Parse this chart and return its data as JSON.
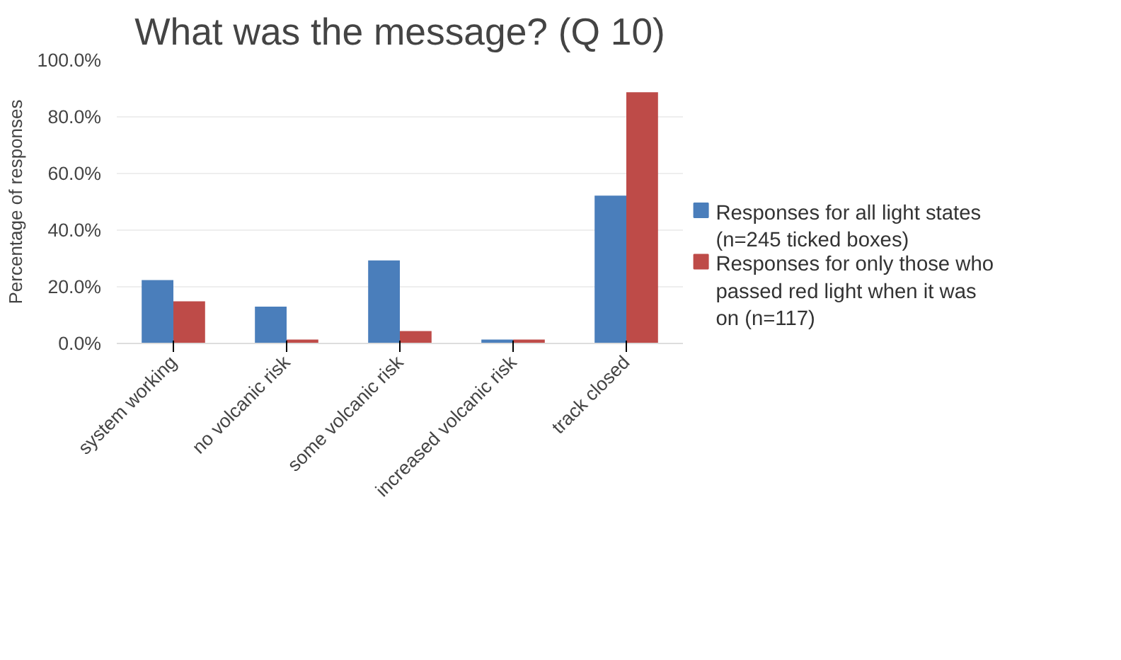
{
  "chart_data": {
    "type": "bar",
    "title": "What was the message? (Q 10)",
    "ylabel": "Percentage of responses",
    "categories": [
      "system working",
      "no volcanic risk",
      "some volcanic risk",
      "increased volcanic risk",
      "track closed"
    ],
    "series": [
      {
        "name": "Responses for all light states (n=245 ticked boxes)",
        "color": "#4a7ebb",
        "values": [
          22.4,
          13.0,
          29.3,
          1.4,
          52.2
        ]
      },
      {
        "name": "Responses for only those who passed red light when it was on (n=117)",
        "color": "#be4b48",
        "values": [
          14.9,
          1.4,
          4.4,
          1.4,
          88.7
        ]
      }
    ],
    "ylim": [
      0,
      100
    ],
    "yticks": [
      {
        "value": 0,
        "label": "0.0%"
      },
      {
        "value": 20,
        "label": "20.0%"
      },
      {
        "value": 40,
        "label": "40.0%"
      },
      {
        "value": 60,
        "label": "60.0%"
      },
      {
        "value": 80,
        "label": "80.0%"
      },
      {
        "value": 100,
        "label": "100.0%"
      }
    ],
    "grid": "y",
    "legend": "right"
  }
}
